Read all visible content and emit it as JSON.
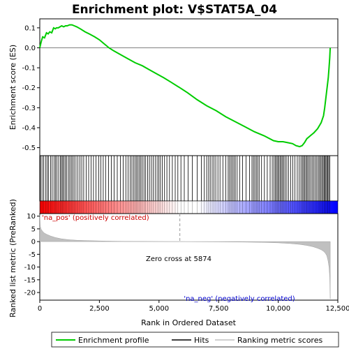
{
  "chart_data": {
    "type": "line",
    "title": "Enrichment plot: V$STAT5A_04",
    "top_panel": {
      "ylabel": "Enrichment score (ES)",
      "ylim": [
        -0.54,
        0.145
      ],
      "yticks": [
        0.1,
        0.0,
        -0.1,
        -0.2,
        -0.3,
        -0.4,
        -0.5
      ],
      "ytick_labels": [
        "0.1",
        "0.0",
        "-0.1",
        "-0.2",
        "-0.3",
        "-0.4",
        "-0.5"
      ],
      "series": [
        {
          "name": "Enrichment profile",
          "color": "#00cc00",
          "x": [
            0,
            60,
            120,
            200,
            280,
            350,
            420,
            500,
            580,
            650,
            700,
            780,
            850,
            920,
            1000,
            1080,
            1150,
            1250,
            1350,
            1450,
            1550,
            1700,
            1900,
            2100,
            2300,
            2500,
            2700,
            2900,
            3100,
            3400,
            3700,
            4000,
            4300,
            4600,
            4900,
            5200,
            5500,
            5874,
            6200,
            6600,
            7000,
            7400,
            7800,
            8200,
            8600,
            9000,
            9400,
            9800,
            10000,
            10200,
            10400,
            10600,
            10750,
            10900,
            11000,
            11100,
            11200,
            11350,
            11500,
            11650,
            11800,
            11900,
            11950,
            12000,
            12050,
            12100,
            12130,
            12160,
            12180
          ],
          "y": [
            0.0,
            0.03,
            0.055,
            0.05,
            0.075,
            0.07,
            0.08,
            0.075,
            0.1,
            0.095,
            0.1,
            0.1,
            0.105,
            0.11,
            0.105,
            0.11,
            0.11,
            0.115,
            0.115,
            0.11,
            0.105,
            0.095,
            0.08,
            0.068,
            0.055,
            0.04,
            0.02,
            0.0,
            -0.015,
            -0.035,
            -0.055,
            -0.075,
            -0.09,
            -0.11,
            -0.13,
            -0.15,
            -0.172,
            -0.2,
            -0.225,
            -0.26,
            -0.29,
            -0.315,
            -0.345,
            -0.37,
            -0.395,
            -0.42,
            -0.44,
            -0.465,
            -0.47,
            -0.47,
            -0.475,
            -0.48,
            -0.49,
            -0.495,
            -0.49,
            -0.475,
            -0.455,
            -0.44,
            -0.425,
            -0.405,
            -0.375,
            -0.34,
            -0.3,
            -0.25,
            -0.2,
            -0.15,
            -0.1,
            -0.05,
            0.0
          ]
        }
      ]
    },
    "hits_panel": {
      "name": "Hits",
      "hit_positions": [
        30,
        95,
        160,
        240,
        310,
        370,
        450,
        520,
        600,
        660,
        720,
        790,
        860,
        910,
        960,
        1010,
        1070,
        1130,
        1200,
        1260,
        1320,
        1380,
        1440,
        1520,
        1600,
        1680,
        1760,
        1840,
        1950,
        2050,
        2150,
        2250,
        2360,
        2470,
        2560,
        2660,
        2760,
        2880,
        3000,
        3120,
        3250,
        3380,
        3500,
        3610,
        3700,
        3790,
        3860,
        3930,
        4000,
        4060,
        4120,
        4180,
        4240,
        4300,
        4370,
        4440,
        4520,
        4600,
        4680,
        4760,
        4840,
        4920,
        4990,
        5060,
        5140,
        5230,
        5330,
        5440,
        5560,
        5680,
        5790,
        5920,
        6060,
        6220,
        6400,
        6600,
        6780,
        6900,
        7000,
        7080,
        7150,
        7230,
        7300,
        7380,
        7470,
        7560,
        7680,
        7800,
        7900,
        7960,
        8020,
        8080,
        8140,
        8200,
        8280,
        8380,
        8500,
        8650,
        8800,
        8900,
        8960,
        9020,
        9080,
        9140,
        9200,
        9300,
        9420,
        9540,
        9660,
        9750,
        9820,
        9880,
        9930,
        9980,
        10030,
        10080,
        10130,
        10180,
        10230,
        10290,
        10360,
        10430,
        10520,
        10610,
        10700,
        10800,
        10880,
        10950,
        11010,
        11060,
        11110,
        11160,
        11210,
        11260,
        11320,
        11380,
        11440,
        11500,
        11560,
        11620,
        11680,
        11730,
        11780,
        11830,
        11880,
        11920,
        11960,
        12000,
        12040,
        12080,
        12120,
        12160
      ]
    },
    "metric_panel": {
      "name": "Ranking metric scores",
      "ylabel": "Ranked list metric (PreRanked)",
      "ylim": [
        -23,
        11
      ],
      "yticks": [
        10,
        5,
        0,
        -5,
        -10,
        -15,
        -20
      ],
      "ytick_labels": [
        "10",
        "5",
        "0",
        "-5",
        "-10",
        "-15",
        "-20"
      ],
      "x": [
        0,
        20,
        60,
        120,
        200,
        300,
        450,
        650,
        900,
        1200,
        1600,
        2100,
        2800,
        3600,
        4500,
        5400,
        5874,
        6500,
        7500,
        8500,
        9300,
        10000,
        10500,
        10900,
        11200,
        11450,
        11650,
        11800,
        11900,
        11980,
        12040,
        12090,
        12130,
        12160,
        12180
      ],
      "y": [
        10.5,
        6.0,
        4.8,
        4.0,
        3.3,
        2.8,
        2.2,
        1.6,
        1.1,
        0.75,
        0.5,
        0.35,
        0.2,
        0.1,
        0.05,
        0.01,
        0.0,
        -0.05,
        -0.1,
        -0.2,
        -0.3,
        -0.5,
        -0.75,
        -1.1,
        -1.5,
        -2.0,
        -2.6,
        -3.2,
        -3.8,
        -4.6,
        -5.6,
        -7.5,
        -10.0,
        -14.0,
        -22.5
      ],
      "annotations": {
        "pos_label": "'na_pos' (positively correlated)",
        "neg_label": "'na_neg' (negatively correlated)",
        "zero_cross_label": "Zero cross at 5874",
        "zero_cross_x": 5874,
        "pos_color": "#cc0000",
        "neg_color": "#0000cc"
      }
    },
    "xlabel": "Rank in Ordered Dataset",
    "xlim": [
      0,
      12500
    ],
    "xticks": [
      0,
      2500,
      5000,
      7500,
      10000,
      12500
    ],
    "xtick_labels": [
      "0",
      "2,500",
      "5,000",
      "7,500",
      "10,000",
      "12,500"
    ],
    "gradient_colors": [
      "#ff0000",
      "#ffffff",
      "#0000ff"
    ],
    "legend": {
      "placement": "bottom",
      "entries": [
        {
          "label": "Enrichment profile",
          "color": "#00cc00"
        },
        {
          "label": "Hits",
          "color": "#000000"
        },
        {
          "label": "Ranking metric scores",
          "color": "#c0c0c0"
        }
      ]
    }
  }
}
